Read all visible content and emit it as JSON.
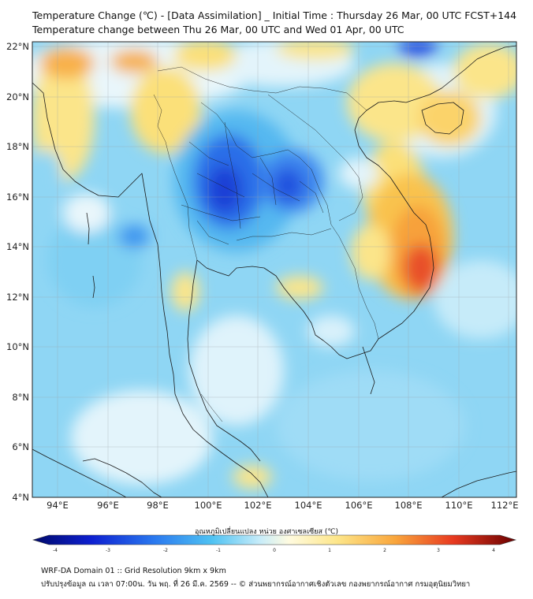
{
  "title_line1": "Temperature Change (℃) - [Data Assimilation] _ Initial Time : Thursday 26 Mar, 00 UTC FCST+144",
  "title_line2": "Temperature change between Thu 26 Mar, 00 UTC and Wed 01 Apr, 00 UTC",
  "lat_labels": [
    "22°N",
    "20°N",
    "18°N",
    "16°N",
    "14°N",
    "12°N",
    "10°N",
    "8°N",
    "6°N",
    "4°N"
  ],
  "lon_labels": [
    "94°E",
    "96°E",
    "98°E",
    "100°E",
    "102°E",
    "104°E",
    "106°E",
    "108°E",
    "110°E",
    "112°E"
  ],
  "colorbar": {
    "label": "อุณหภูมิเปลี่ยนแปลง หน่วย องศาเซลเซียส (℃)",
    "ticks": [
      "-4",
      "-3",
      "-2",
      "-1",
      "0",
      "1",
      "2",
      "3",
      "4"
    ],
    "min": -4,
    "max": 4
  },
  "footer_line1": "WRF-DA Domain 01 :: Grid Resolution 9km x 9km",
  "footer_line2": "ปรับปรุงข้อมูล ณ เวลา 07:00น. วัน พฤ. ที่ 26 มี.ค. 2569 -- © ส่วนพยากรณ์อากาศเชิงตัวเลข กองพยากรณ์อากาศ กรมอุตุนิยมวิทยา",
  "colors": {
    "deep_blue": "#1a3fd6",
    "blue": "#3b86f0",
    "light_blue": "#8fd4f5",
    "cyan": "#5cc8f0",
    "near_zero": "#dff3fb",
    "yellow": "#fbe58a",
    "orange": "#f8a53a",
    "red": "#e8472a"
  }
}
